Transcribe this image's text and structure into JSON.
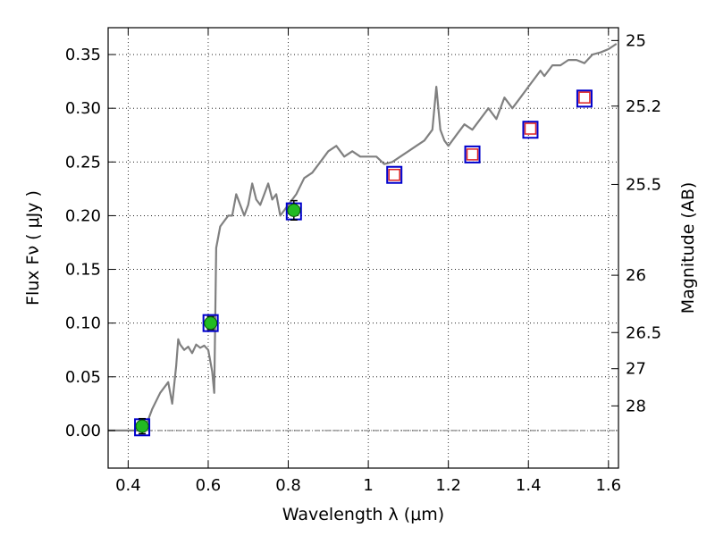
{
  "chart_data": {
    "type": "scatter",
    "xlabel": "Wavelength  λ (μm)",
    "ylabel": "Flux  Fν  ( μJy )",
    "y2label": "Magnitude (AB)",
    "xlim": [
      0.35,
      1.625
    ],
    "ylim": [
      -0.035,
      0.375
    ],
    "grid": true,
    "x_ticks": [
      {
        "v": 0.4,
        "label": "0.4"
      },
      {
        "v": 0.6,
        "label": "0.6"
      },
      {
        "v": 0.8,
        "label": "0.8"
      },
      {
        "v": 1.0,
        "label": "1"
      },
      {
        "v": 1.2,
        "label": "1.2"
      },
      {
        "v": 1.4,
        "label": "1.4"
      },
      {
        "v": 1.6,
        "label": "1.6"
      }
    ],
    "y_ticks": [
      {
        "v": 0.0,
        "label": "0.00"
      },
      {
        "v": 0.05,
        "label": "0.05"
      },
      {
        "v": 0.1,
        "label": "0.10"
      },
      {
        "v": 0.15,
        "label": "0.15"
      },
      {
        "v": 0.2,
        "label": "0.20"
      },
      {
        "v": 0.25,
        "label": "0.25"
      },
      {
        "v": 0.3,
        "label": "0.30"
      },
      {
        "v": 0.35,
        "label": "0.35"
      }
    ],
    "mag_ticks": [
      {
        "mag": 25,
        "label": "25"
      },
      {
        "mag": 25.2,
        "label": "25.2"
      },
      {
        "mag": 25.5,
        "label": "25.5"
      },
      {
        "mag": 26,
        "label": "26"
      },
      {
        "mag": 26.5,
        "label": "26.5"
      },
      {
        "mag": 27,
        "label": "27"
      },
      {
        "mag": 28,
        "label": "28"
      }
    ],
    "series": [
      {
        "kind": "model_spectrum",
        "color": "#808080",
        "x": [
          0.35,
          0.44,
          0.46,
          0.48,
          0.5,
          0.51,
          0.52,
          0.525,
          0.53,
          0.54,
          0.55,
          0.56,
          0.57,
          0.58,
          0.59,
          0.6,
          0.61,
          0.615,
          0.62,
          0.63,
          0.64,
          0.65,
          0.66,
          0.67,
          0.68,
          0.69,
          0.7,
          0.71,
          0.72,
          0.73,
          0.74,
          0.75,
          0.76,
          0.77,
          0.78,
          0.8,
          0.82,
          0.84,
          0.86,
          0.88,
          0.9,
          0.92,
          0.94,
          0.96,
          0.98,
          1.0,
          1.02,
          1.04,
          1.06,
          1.08,
          1.1,
          1.12,
          1.14,
          1.16,
          1.17,
          1.18,
          1.19,
          1.2,
          1.22,
          1.24,
          1.26,
          1.28,
          1.3,
          1.32,
          1.34,
          1.36,
          1.38,
          1.4,
          1.42,
          1.43,
          1.44,
          1.46,
          1.48,
          1.5,
          1.52,
          1.54,
          1.56,
          1.58,
          1.6,
          1.62
        ],
        "y": [
          0.0,
          0.0,
          0.02,
          0.035,
          0.045,
          0.025,
          0.06,
          0.085,
          0.08,
          0.075,
          0.078,
          0.072,
          0.08,
          0.077,
          0.079,
          0.075,
          0.055,
          0.035,
          0.17,
          0.19,
          0.195,
          0.2,
          0.2,
          0.22,
          0.21,
          0.2,
          0.21,
          0.23,
          0.215,
          0.21,
          0.22,
          0.23,
          0.215,
          0.22,
          0.2,
          0.21,
          0.22,
          0.235,
          0.24,
          0.25,
          0.26,
          0.265,
          0.255,
          0.26,
          0.255,
          0.255,
          0.255,
          0.248,
          0.25,
          0.255,
          0.26,
          0.265,
          0.27,
          0.28,
          0.32,
          0.28,
          0.27,
          0.265,
          0.275,
          0.285,
          0.28,
          0.29,
          0.3,
          0.29,
          0.31,
          0.3,
          0.31,
          0.32,
          0.33,
          0.335,
          0.33,
          0.34,
          0.34,
          0.345,
          0.345,
          0.342,
          0.35,
          0.352,
          0.355,
          0.36
        ]
      },
      {
        "kind": "model_photometry",
        "marker": "square",
        "color": "#0000cc",
        "x": [
          0.435,
          0.606,
          0.814,
          1.065,
          1.26,
          1.405,
          1.54
        ],
        "y": [
          0.003,
          0.1,
          0.204,
          0.238,
          0.257,
          0.28,
          0.309
        ]
      },
      {
        "kind": "observed_photometry",
        "marker": "circle",
        "color": "#22bb22",
        "x": [
          0.435,
          0.606,
          0.814
        ],
        "y": [
          0.004,
          0.1,
          0.205
        ],
        "yerr": [
          0.007,
          0.006,
          0.009
        ]
      },
      {
        "kind": "upper_limits",
        "marker": "open-square",
        "color": "#dd2222",
        "x": [
          1.065,
          1.26,
          1.405,
          1.54
        ],
        "y": [
          0.238,
          0.257,
          0.281,
          0.31
        ]
      }
    ]
  }
}
